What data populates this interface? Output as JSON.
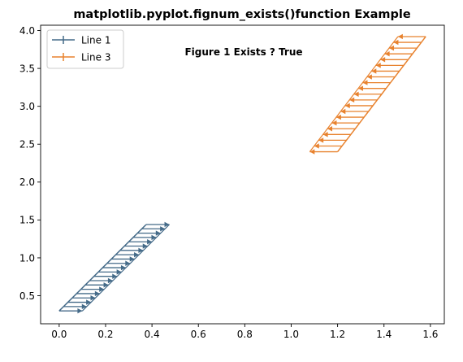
{
  "chart_data": {
    "type": "line",
    "title": "matplotlib.pyplot.fignum_exists()function Example",
    "annotation": "Figure 1 Exists ? True",
    "xlabel": "",
    "ylabel": "",
    "xlim": [
      -0.08,
      1.66
    ],
    "ylim": [
      0.13,
      4.07
    ],
    "xticks": [
      0.0,
      0.2,
      0.4,
      0.6,
      0.8,
      1.0,
      1.2,
      1.4,
      1.6
    ],
    "xtick_labels": [
      "0.0",
      "0.2",
      "0.4",
      "0.6",
      "0.8",
      "1.0",
      "1.2",
      "1.4",
      "1.6"
    ],
    "yticks": [
      0.5,
      1.0,
      1.5,
      2.0,
      2.5,
      3.0,
      3.5,
      4.0
    ],
    "ytick_labels": [
      "0.5",
      "1.0",
      "1.5",
      "2.0",
      "2.5",
      "3.0",
      "3.5",
      "4.0"
    ],
    "legend": {
      "placement": "upper left"
    },
    "series": [
      {
        "name": "Line 1",
        "color": "#446a88",
        "marker": "+",
        "style": "quiver-arrows-pointing-right",
        "x_start": 0.0,
        "x_end": 0.375,
        "y_start": 0.3,
        "y_end": 1.44,
        "shift": 0.1,
        "steps": 20
      },
      {
        "name": "Line 3",
        "color": "#e8822e",
        "marker": "+",
        "style": "quiver-arrows-pointing-left",
        "x_start": 1.2,
        "x_end": 1.58,
        "y_start": 2.4,
        "y_end": 3.92,
        "shift": -0.12,
        "steps": 20
      }
    ]
  }
}
